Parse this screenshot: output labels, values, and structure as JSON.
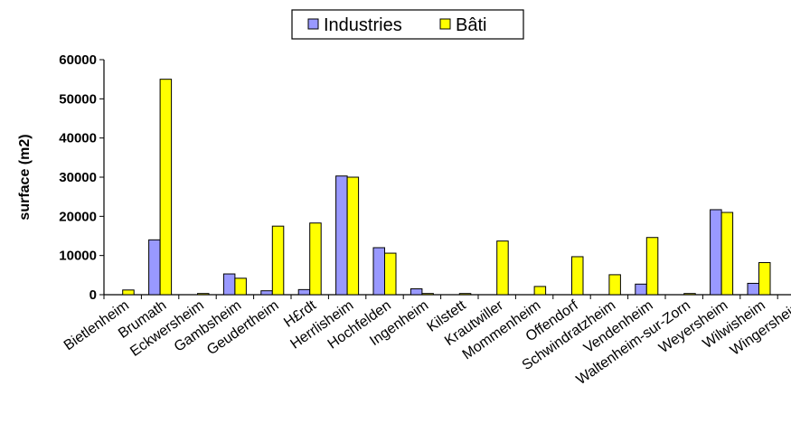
{
  "chart_data": {
    "type": "bar",
    "ylabel": "surface (m2)",
    "xlabel": "",
    "ylim": [
      0,
      60000
    ],
    "yticks": [
      0,
      10000,
      20000,
      30000,
      40000,
      50000,
      60000
    ],
    "ytick_labels": [
      "0",
      "10000",
      "20000",
      "30000",
      "40000",
      "50000",
      "60000"
    ],
    "grid": false,
    "legend_position": "top-center",
    "categories": [
      "Bietlenheim",
      "Brumath",
      "Eckwersheim",
      "Gambsheim",
      "Geudertheim",
      "H£rdt",
      "Herrlisheim",
      "Hochfelden",
      "Ingenheim",
      "Kilstett",
      "Krautwiller",
      "Mommenheim",
      "Offendorf",
      "Schwindratzheim",
      "Vendenheim",
      "Waltenheim-sur-Zorn",
      "Weyersheim",
      "Wilwisheim",
      "Wingersheim"
    ],
    "series": [
      {
        "name": "Industries",
        "color": "#9999ff",
        "values": [
          0,
          14000,
          0,
          5300,
          1000,
          1300,
          30300,
          12000,
          1500,
          0,
          0,
          0,
          0,
          0,
          2700,
          0,
          21700,
          2900,
          0
        ]
      },
      {
        "name": "Bâti",
        "color": "#ffff00",
        "values": [
          1200,
          55000,
          300,
          4200,
          17500,
          18300,
          30000,
          10600,
          300,
          300,
          13700,
          2100,
          9700,
          5100,
          14600,
          300,
          21000,
          8200,
          300
        ]
      }
    ]
  }
}
